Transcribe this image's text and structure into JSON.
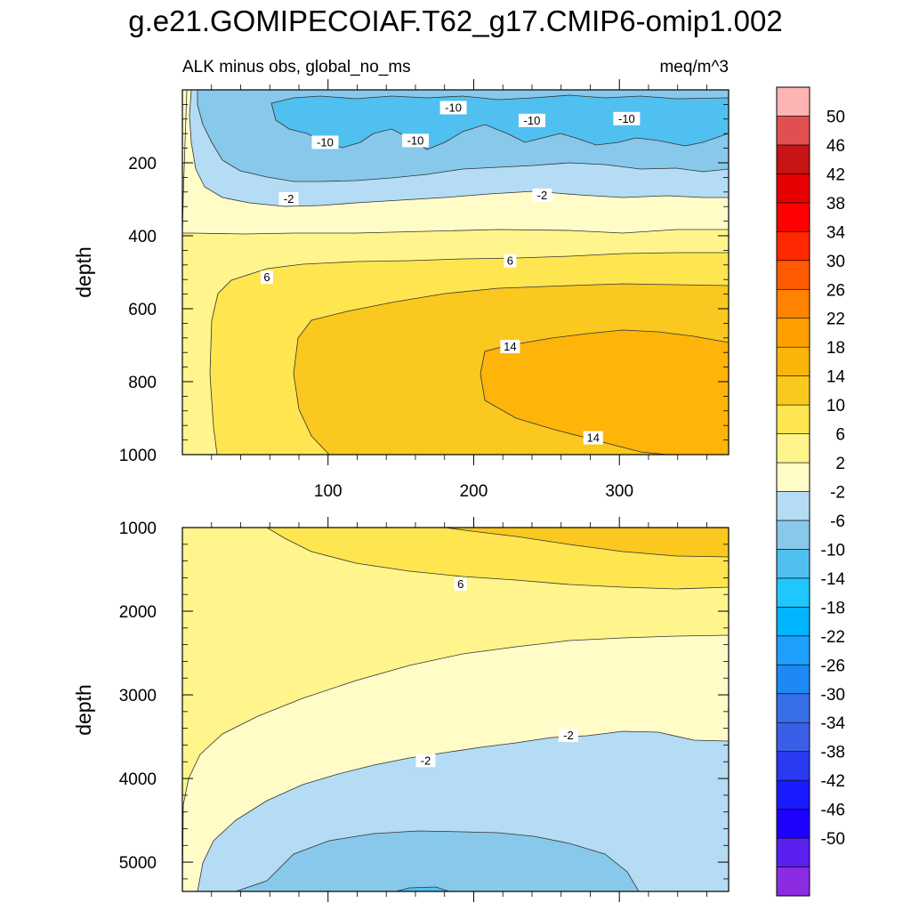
{
  "title": "g.e21.GOMIPECOIAF.T62_g17.CMIP6-omip1.002",
  "subtitle_left": "ALK minus obs, global_no_ms",
  "subtitle_right": "meq/m^3",
  "colors": {
    "levels": [
      "#8b2be2",
      "#5b1ff0",
      "#1e00ff",
      "#1a1aff",
      "#2a3af0",
      "#3b5ee8",
      "#3670e8",
      "#1e88f5",
      "#1ea0ff",
      "#00b4ff",
      "#1ec8ff",
      "#50c0f0",
      "#88c8ea",
      "#b4dcf4",
      "#fffcc8",
      "#fff58c",
      "#ffe650",
      "#fac81e",
      "#fab40a",
      "#ffa000",
      "#ff8200",
      "#ff5a00",
      "#ff2800",
      "#ff0000",
      "#e60000",
      "#c81414",
      "#e15050",
      "#ffb4b4"
    ]
  },
  "chart_data": [
    {
      "type": "contour",
      "panel": "upper",
      "ylabel": "depth",
      "xlabel": "",
      "xlim": [
        0,
        375
      ],
      "ylim": [
        0,
        1000
      ],
      "x_ticks": [
        100,
        200,
        300
      ],
      "x_tick_labels": [
        "100",
        "200",
        "300"
      ],
      "y_ticks": [
        200,
        400,
        600,
        800,
        1000
      ],
      "y_tick_labels": [
        "200",
        "400",
        "600",
        "800",
        "1000"
      ],
      "contour_labels": [
        {
          "text": "-10",
          "x": 186,
          "depth": 50
        },
        {
          "text": "-10",
          "x": 98,
          "depth": 145
        },
        {
          "text": "-10",
          "x": 160,
          "depth": 140
        },
        {
          "text": "-10",
          "x": 240,
          "depth": 85
        },
        {
          "text": "-10",
          "x": 305,
          "depth": 80
        },
        {
          "text": "-2",
          "x": 73,
          "depth": 300
        },
        {
          "text": "-2",
          "x": 247,
          "depth": 290
        },
        {
          "text": "6",
          "x": 58,
          "depth": 515
        },
        {
          "text": "6",
          "x": 225,
          "depth": 470
        },
        {
          "text": "14",
          "x": 225,
          "depth": 705
        },
        {
          "text": "14",
          "x": 282,
          "depth": 955
        }
      ]
    },
    {
      "type": "contour",
      "panel": "lower",
      "ylabel": "depth",
      "xlabel": "",
      "xlim": [
        0,
        375
      ],
      "ylim": [
        1000,
        5350
      ],
      "x_ticks": [
        100,
        200,
        300
      ],
      "y_ticks": [
        1000,
        2000,
        3000,
        4000,
        5000
      ],
      "y_tick_labels": [
        "1000",
        "2000",
        "3000",
        "4000",
        "5000"
      ],
      "contour_labels": [
        {
          "text": "6",
          "x": 191,
          "depth": 1680
        },
        {
          "text": "-2",
          "x": 167,
          "depth": 3790
        },
        {
          "text": "-2",
          "x": 265,
          "depth": 3490
        }
      ]
    }
  ],
  "colorbar": {
    "labels": [
      "50",
      "46",
      "42",
      "38",
      "34",
      "30",
      "26",
      "22",
      "18",
      "14",
      "10",
      "6",
      "2",
      "-2",
      "-6",
      "-10",
      "-14",
      "-18",
      "-22",
      "-26",
      "-30",
      "-34",
      "-38",
      "-42",
      "-46",
      "-50"
    ]
  }
}
